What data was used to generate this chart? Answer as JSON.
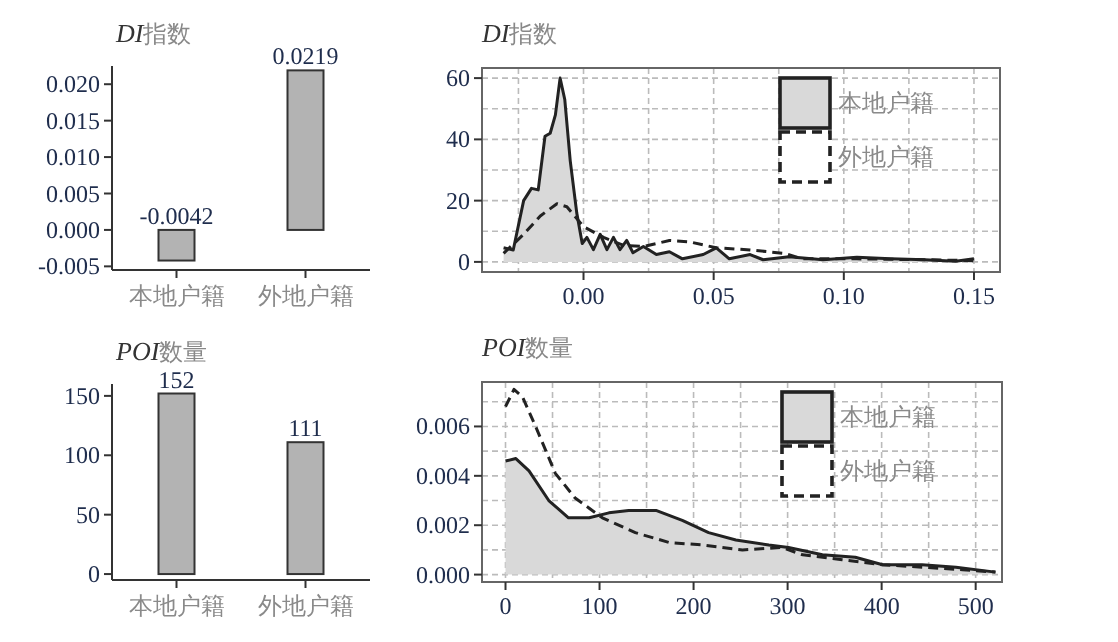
{
  "chart_data": [
    {
      "type": "bar",
      "title": "DI指数",
      "categories": [
        "本地户籍",
        "外地户籍"
      ],
      "values": [
        -0.0042,
        0.0219
      ],
      "color": "#b3b3b3",
      "data_labels": true,
      "ylim": [
        -0.0055,
        0.0225
      ],
      "yticks": [
        {
          "value": -0.005,
          "label": "-0.005"
        },
        {
          "value": 0,
          "label": "0.000"
        },
        {
          "value": 0.005,
          "label": "0.005"
        },
        {
          "value": 0.01,
          "label": "0.010"
        },
        {
          "value": 0.015,
          "label": "0.015"
        },
        {
          "value": 0.02,
          "label": "0.020"
        }
      ]
    },
    {
      "type": "line",
      "title": "DI指数",
      "xlim": [
        -0.039,
        0.16
      ],
      "ylim": [
        -3.3,
        63.3
      ],
      "yticks": [
        0,
        20,
        40,
        60
      ],
      "xticks": [
        {
          "value": 0,
          "label": "0.00"
        },
        {
          "value": 0.05,
          "label": "0.05"
        },
        {
          "value": 0.1,
          "label": "0.10"
        },
        {
          "value": 0.15,
          "label": "0.15"
        }
      ],
      "grid": true,
      "legend": "top right",
      "series": [
        {
          "name": "本地户籍",
          "type": "area",
          "color": "#d9d9d9",
          "line_style": "solid",
          "x": [
            -0.0307,
            -0.027,
            -0.023,
            -0.02,
            -0.0174,
            -0.0148,
            -0.0128,
            -0.0108,
            -0.009,
            -0.0072,
            -0.0051,
            -0.0026,
            -0.0005,
            0.0013,
            0.0038,
            0.0064,
            0.009,
            0.0115,
            0.014,
            0.0166,
            0.019,
            0.023,
            0.028,
            0.033,
            0.038,
            0.046,
            0.051,
            0.056,
            0.064,
            0.069,
            0.079,
            0.092,
            0.105,
            0.118,
            0.131,
            0.143,
            0.15
          ],
          "values": [
            4.6,
            3.9,
            20,
            24,
            23.5,
            41,
            42,
            48,
            60,
            53,
            33,
            16,
            6,
            8,
            4,
            9,
            4,
            8,
            4,
            7,
            3,
            5,
            2.4,
            3.3,
            1,
            2.4,
            4.6,
            1,
            2.4,
            0.7,
            1.7,
            0.7,
            1.5,
            1,
            0.7,
            0.2,
            1
          ]
        },
        {
          "name": "外地户籍",
          "type": "line",
          "color": "#222222",
          "line_style": "dashed",
          "x": [
            -0.0307,
            -0.023,
            -0.0166,
            -0.0102,
            -0.0064,
            0,
            0.0077,
            0.0154,
            0.023,
            0.033,
            0.041,
            0.051,
            0.064,
            0.077,
            0.084,
            0.105,
            0.131,
            0.15
          ],
          "values": [
            2.8,
            9,
            15,
            19,
            18,
            11.5,
            8,
            5.4,
            5,
            7,
            6.5,
            4.6,
            3.9,
            2.8,
            1,
            1,
            0.7,
            0.4
          ]
        }
      ]
    },
    {
      "type": "bar",
      "title": "POI数量",
      "categories": [
        "本地户籍",
        "外地户籍"
      ],
      "values": [
        152,
        111
      ],
      "color": "#b3b3b3",
      "data_labels": true,
      "ylim": [
        -5,
        160
      ],
      "yticks": [
        0,
        50,
        100,
        150
      ]
    },
    {
      "type": "line",
      "title": "POI数量",
      "xlim": [
        -25,
        528
      ],
      "ylim": [
        -0.0003,
        0.0078
      ],
      "xticks": [
        0,
        100,
        200,
        300,
        400,
        500
      ],
      "yticks": [
        {
          "value": 0,
          "label": "0.000"
        },
        {
          "value": 0.002,
          "label": "0.002"
        },
        {
          "value": 0.004,
          "label": "0.004"
        },
        {
          "value": 0.006,
          "label": "0.006"
        }
      ],
      "grid": true,
      "legend": "top right",
      "series": [
        {
          "name": "本地户籍",
          "type": "area",
          "color": "#d9d9d9",
          "line_style": "solid",
          "x": [
            0,
            11,
            25,
            46,
            67,
            89,
            110,
            131,
            160,
            188,
            216,
            245,
            280,
            301,
            337,
            372,
            401,
            443,
            479,
            521
          ],
          "values": [
            0.0046,
            0.0047,
            0.0042,
            0.003,
            0.0023,
            0.0023,
            0.0025,
            0.0026,
            0.0026,
            0.0022,
            0.0017,
            0.0014,
            0.0012,
            0.0011,
            0.0008,
            0.0007,
            0.0004,
            0.0004,
            0.0003,
            0.0001
          ]
        },
        {
          "name": "外地户籍",
          "type": "line",
          "color": "#222222",
          "line_style": "dashed",
          "x": [
            0,
            9,
            18,
            32,
            53,
            74,
            103,
            138,
            174,
            209,
            252,
            294,
            316,
            358,
            401,
            443,
            486,
            521
          ],
          "values": [
            0.0068,
            0.0075,
            0.0072,
            0.006,
            0.0041,
            0.0031,
            0.0023,
            0.0017,
            0.0013,
            0.0012,
            0.001,
            0.0011,
            0.0008,
            0.0006,
            0.0004,
            0.0003,
            0.0002,
            0.0001
          ]
        }
      ]
    }
  ]
}
